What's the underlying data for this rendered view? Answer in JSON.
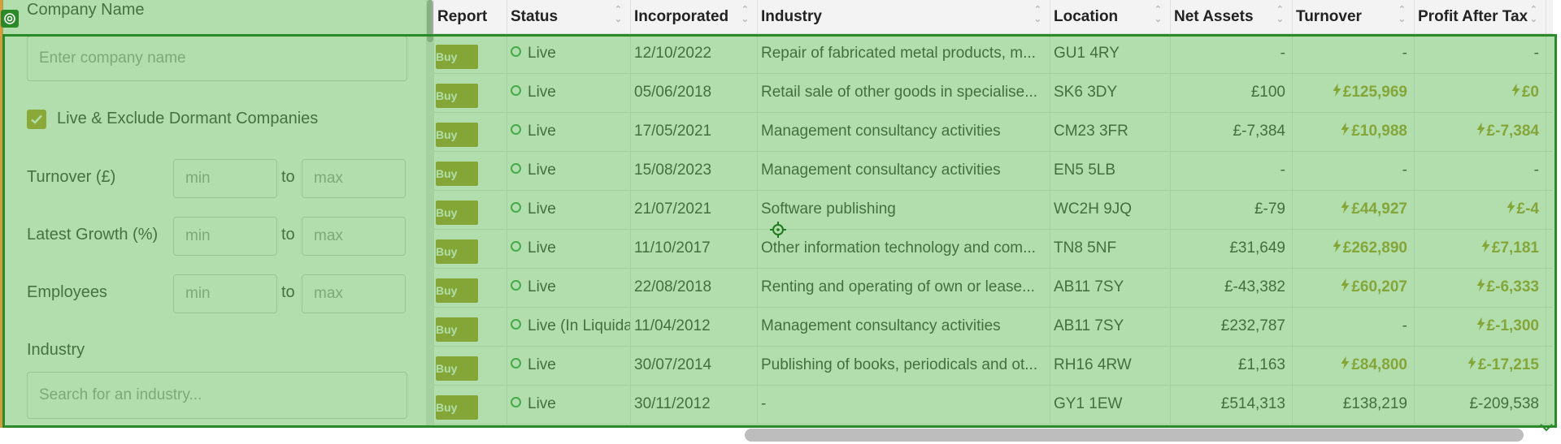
{
  "filters": {
    "company_name_label": "Company Name",
    "company_name_placeholder": "Enter company name",
    "live_checkbox_label": "Live & Exclude Dormant Companies",
    "live_checked": true,
    "turnover_label": "Turnover (£)",
    "growth_label": "Latest Growth (%)",
    "employees_label": "Employees",
    "min_placeholder": "min",
    "max_placeholder": "max",
    "to_label": "to",
    "industry_label": "Industry",
    "industry_placeholder": "Search for an industry..."
  },
  "table": {
    "headers": [
      "Report",
      "Status",
      "Incorporated",
      "Industry",
      "Location",
      "Net Assets",
      "Turnover",
      "Profit After Tax"
    ],
    "buy_label": "Buy",
    "rows": [
      {
        "status": "Live",
        "incorporated": "12/10/2022",
        "industry": "Repair of fabricated metal products, m...",
        "location": "GU1 4RY",
        "net_assets": "-",
        "turnover": "-",
        "turnover_gold": false,
        "profit": "-",
        "profit_gold": false
      },
      {
        "status": "Live",
        "incorporated": "05/06/2018",
        "industry": "Retail sale of other goods in specialise...",
        "location": "SK6 3DY",
        "net_assets": "£100",
        "turnover": "£125,969",
        "turnover_gold": true,
        "profit": "£0",
        "profit_gold": true
      },
      {
        "status": "Live",
        "incorporated": "17/05/2021",
        "industry": "Management consultancy activities",
        "location": "CM23 3FR",
        "net_assets": "£-7,384",
        "turnover": "£10,988",
        "turnover_gold": true,
        "profit": "£-7,384",
        "profit_gold": true
      },
      {
        "status": "Live",
        "incorporated": "15/08/2023",
        "industry": "Management consultancy activities",
        "location": "EN5 5LB",
        "net_assets": "-",
        "turnover": "-",
        "turnover_gold": false,
        "profit": "-",
        "profit_gold": false
      },
      {
        "status": "Live",
        "incorporated": "21/07/2021",
        "industry": "Software publishing",
        "location": "WC2H 9JQ",
        "net_assets": "£-79",
        "turnover": "£44,927",
        "turnover_gold": true,
        "profit": "£-4",
        "profit_gold": true
      },
      {
        "status": "Live",
        "incorporated": "11/10/2017",
        "industry": "Other information technology and com...",
        "location": "TN8 5NF",
        "net_assets": "£31,649",
        "turnover": "£262,890",
        "turnover_gold": true,
        "profit": "£7,181",
        "profit_gold": true
      },
      {
        "status": "Live",
        "incorporated": "22/08/2018",
        "industry": "Renting and operating of own or lease...",
        "location": "AB11 7SY",
        "net_assets": "£-43,382",
        "turnover": "£60,207",
        "turnover_gold": true,
        "profit": "£-6,333",
        "profit_gold": true
      },
      {
        "status": "Live (In Liquidation)",
        "incorporated": "11/04/2012",
        "industry": "Management consultancy activities",
        "location": "AB11 7SY",
        "net_assets": "£232,787",
        "turnover": "-",
        "turnover_gold": false,
        "profit": "£-1,300",
        "profit_gold": true
      },
      {
        "status": "Live",
        "incorporated": "30/07/2014",
        "industry": "Publishing of books, periodicals and ot...",
        "location": "RH16 4RW",
        "net_assets": "£1,163",
        "turnover": "£84,800",
        "turnover_gold": true,
        "profit": "£-17,215",
        "profit_gold": true
      },
      {
        "status": "Live",
        "incorporated": "30/11/2012",
        "industry": "-",
        "location": "GY1 1EW",
        "net_assets": "£514,313",
        "turnover": "£138,219",
        "turnover_gold": false,
        "profit": "£-209,538",
        "profit_gold": false
      }
    ]
  },
  "colors": {
    "accent_gold": "#a8951c",
    "status_green": "#2f9e3e",
    "overlay_green": "#2a8a2a"
  },
  "icons": {
    "checkbox": "check-icon",
    "status": "status-dot-icon",
    "gold_value": "lightning-icon",
    "sort": "sort-arrows-icon"
  }
}
